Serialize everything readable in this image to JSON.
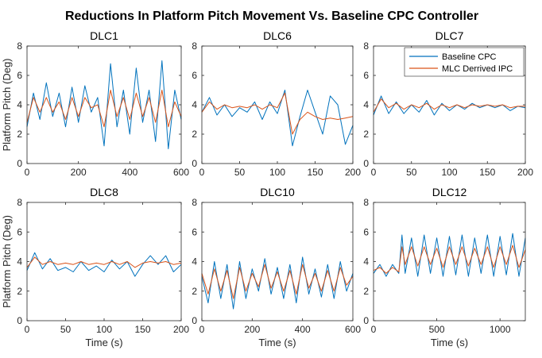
{
  "figure_title": "Reductions In Platform Pitch Movement Vs. Baseline CPC Controller",
  "legend": [
    "Baseline CPC",
    "MLC Derrived IPC"
  ],
  "colors": {
    "baseline": "#0072BD",
    "mlc": "#D95319"
  },
  "chart_data": [
    {
      "type": "line",
      "title": "DLC1",
      "xlabel": "",
      "ylabel": "Platform Pitch (Deg)",
      "xlim": [
        0,
        600
      ],
      "ylim": [
        0,
        8
      ],
      "xticks": [
        0,
        200,
        400,
        600
      ],
      "yticks": [
        0,
        2,
        4,
        6,
        8
      ],
      "legend": false,
      "series": [
        {
          "name": "Baseline CPC",
          "x": [
            0,
            25,
            50,
            75,
            100,
            125,
            150,
            175,
            200,
            225,
            250,
            275,
            300,
            325,
            350,
            375,
            400,
            425,
            450,
            475,
            500,
            525,
            550,
            575,
            600
          ],
          "y": [
            2.5,
            4.8,
            3.0,
            5.5,
            3.2,
            4.8,
            2.5,
            5.2,
            2.8,
            5.3,
            3.5,
            4.5,
            1.2,
            6.8,
            2.5,
            5.0,
            2.0,
            6.5,
            2.8,
            5.0,
            1.5,
            7.0,
            1.0,
            5.0,
            3.0
          ]
        },
        {
          "name": "MLC Derrived IPC",
          "x": [
            0,
            25,
            50,
            75,
            100,
            125,
            150,
            175,
            200,
            225,
            250,
            275,
            300,
            325,
            350,
            375,
            400,
            425,
            450,
            475,
            500,
            525,
            550,
            575,
            600
          ],
          "y": [
            2.8,
            4.5,
            3.5,
            4.5,
            3.5,
            4.2,
            3.0,
            4.5,
            3.2,
            4.5,
            3.8,
            4.0,
            2.5,
            5.0,
            3.2,
            4.5,
            3.0,
            4.8,
            3.2,
            4.5,
            2.8,
            5.0,
            2.5,
            4.2,
            3.2
          ]
        }
      ]
    },
    {
      "type": "line",
      "title": "DLC6",
      "xlabel": "",
      "ylabel": "",
      "xlim": [
        0,
        200
      ],
      "ylim": [
        0,
        8
      ],
      "xticks": [
        0,
        50,
        100,
        150,
        200
      ],
      "yticks": [
        0,
        2,
        4,
        6,
        8
      ],
      "legend": false,
      "series": [
        {
          "name": "Baseline CPC",
          "x": [
            0,
            10,
            20,
            30,
            40,
            50,
            60,
            70,
            80,
            90,
            100,
            110,
            120,
            130,
            140,
            150,
            160,
            170,
            180,
            190,
            200
          ],
          "y": [
            3.5,
            4.5,
            3.3,
            4.0,
            3.2,
            3.8,
            3.5,
            4.2,
            3.0,
            4.2,
            3.4,
            5.0,
            1.2,
            3.2,
            5.0,
            3.5,
            2.0,
            4.6,
            4.0,
            1.3,
            2.6
          ]
        },
        {
          "name": "MLC Derrived IPC",
          "x": [
            0,
            10,
            20,
            30,
            40,
            50,
            60,
            70,
            80,
            90,
            100,
            110,
            120,
            130,
            140,
            150,
            160,
            170,
            180,
            190,
            200
          ],
          "y": [
            3.5,
            4.2,
            3.7,
            4.0,
            3.8,
            3.9,
            3.8,
            4.0,
            3.7,
            4.0,
            3.8,
            4.8,
            2.0,
            3.0,
            3.5,
            3.2,
            3.0,
            3.1,
            3.0,
            3.1,
            3.2
          ]
        }
      ]
    },
    {
      "type": "line",
      "title": "DLC7",
      "xlabel": "",
      "ylabel": "",
      "xlim": [
        0,
        200
      ],
      "ylim": [
        0,
        8
      ],
      "xticks": [
        0,
        50,
        100,
        150,
        200
      ],
      "yticks": [
        0,
        2,
        4,
        6,
        8
      ],
      "legend": true,
      "series": [
        {
          "name": "Baseline CPC",
          "x": [
            0,
            10,
            20,
            30,
            40,
            50,
            60,
            70,
            80,
            90,
            100,
            110,
            120,
            130,
            140,
            150,
            160,
            170,
            180,
            190,
            200
          ],
          "y": [
            3.3,
            4.6,
            3.4,
            4.2,
            3.4,
            4.0,
            3.5,
            4.3,
            3.3,
            4.1,
            3.6,
            4.0,
            3.7,
            4.1,
            3.8,
            4.0,
            3.8,
            4.0,
            3.6,
            3.9,
            3.8
          ]
        },
        {
          "name": "MLC Derrived IPC",
          "x": [
            0,
            10,
            20,
            30,
            40,
            50,
            60,
            70,
            80,
            90,
            100,
            110,
            120,
            130,
            140,
            150,
            160,
            170,
            180,
            190,
            200
          ],
          "y": [
            3.5,
            4.4,
            3.8,
            4.1,
            3.7,
            4.0,
            3.8,
            4.1,
            3.7,
            4.0,
            3.8,
            4.0,
            3.8,
            4.0,
            3.9,
            4.0,
            3.9,
            4.0,
            3.8,
            3.9,
            3.9
          ]
        }
      ]
    },
    {
      "type": "line",
      "title": "DLC8",
      "xlabel": "Time (s)",
      "ylabel": "Platform Pitch (Deg)",
      "xlim": [
        0,
        200
      ],
      "ylim": [
        0,
        8
      ],
      "xticks": [
        0,
        50,
        100,
        150,
        200
      ],
      "yticks": [
        0,
        2,
        4,
        6,
        8
      ],
      "legend": false,
      "series": [
        {
          "name": "Baseline CPC",
          "x": [
            0,
            10,
            20,
            30,
            40,
            50,
            60,
            70,
            80,
            90,
            100,
            110,
            120,
            130,
            140,
            150,
            160,
            170,
            180,
            190,
            200
          ],
          "y": [
            3.4,
            4.6,
            3.5,
            4.2,
            3.4,
            3.6,
            3.3,
            4.0,
            3.4,
            3.7,
            3.3,
            4.1,
            3.5,
            4.0,
            3.0,
            3.8,
            4.4,
            3.8,
            4.4,
            3.3,
            3.8
          ]
        },
        {
          "name": "MLC Derrived IPC",
          "x": [
            0,
            10,
            20,
            30,
            40,
            50,
            60,
            70,
            80,
            90,
            100,
            110,
            120,
            130,
            140,
            150,
            160,
            170,
            180,
            190,
            200
          ],
          "y": [
            3.6,
            4.3,
            3.8,
            4.0,
            3.8,
            3.9,
            3.8,
            4.0,
            3.8,
            3.9,
            3.8,
            4.0,
            3.8,
            4.0,
            3.6,
            3.9,
            4.0,
            3.9,
            4.0,
            3.8,
            3.9
          ]
        }
      ]
    },
    {
      "type": "line",
      "title": "DLC10",
      "xlabel": "Time (s)",
      "ylabel": "",
      "xlim": [
        0,
        600
      ],
      "ylim": [
        0,
        8
      ],
      "xticks": [
        0,
        200,
        400,
        600
      ],
      "yticks": [
        0,
        2,
        4,
        6,
        8
      ],
      "legend": false,
      "series": [
        {
          "name": "Baseline CPC",
          "x": [
            0,
            25,
            50,
            75,
            100,
            125,
            150,
            175,
            200,
            225,
            250,
            275,
            300,
            325,
            350,
            375,
            400,
            425,
            450,
            475,
            500,
            525,
            550,
            575,
            600
          ],
          "y": [
            3.0,
            1.2,
            4.0,
            1.5,
            3.8,
            0.8,
            4.0,
            1.5,
            3.5,
            2.0,
            4.2,
            1.8,
            3.6,
            1.5,
            3.8,
            1.2,
            4.3,
            1.8,
            3.5,
            1.6,
            3.8,
            1.5,
            4.0,
            2.0,
            3.2
          ]
        },
        {
          "name": "MLC Derrived IPC",
          "x": [
            0,
            25,
            50,
            75,
            100,
            125,
            150,
            175,
            200,
            225,
            250,
            275,
            300,
            325,
            350,
            375,
            400,
            425,
            450,
            475,
            500,
            525,
            550,
            575,
            600
          ],
          "y": [
            3.2,
            1.8,
            3.5,
            2.0,
            3.4,
            1.5,
            3.6,
            2.0,
            3.2,
            2.3,
            3.8,
            2.2,
            3.3,
            2.0,
            3.4,
            1.8,
            3.8,
            2.2,
            3.2,
            2.0,
            3.4,
            2.0,
            3.6,
            2.4,
            3.0
          ]
        }
      ]
    },
    {
      "type": "line",
      "title": "DLC12",
      "xlabel": "Time (s)",
      "ylabel": "",
      "xlim": [
        0,
        1200
      ],
      "ylim": [
        0,
        8
      ],
      "xticks": [
        0,
        500,
        1000
      ],
      "yticks": [
        0,
        2,
        4,
        6,
        8
      ],
      "legend": false,
      "series": [
        {
          "name": "Baseline CPC",
          "x": [
            0,
            50,
            100,
            150,
            200,
            225,
            250,
            300,
            350,
            400,
            450,
            500,
            550,
            600,
            650,
            700,
            750,
            800,
            850,
            900,
            950,
            1000,
            1050,
            1100,
            1150,
            1200
          ],
          "y": [
            3.2,
            3.8,
            3.0,
            3.8,
            3.2,
            5.8,
            3.2,
            5.6,
            3.0,
            5.8,
            3.2,
            5.6,
            3.0,
            5.7,
            3.1,
            5.8,
            3.0,
            5.6,
            3.2,
            5.8,
            3.0,
            5.7,
            3.1,
            5.9,
            3.0,
            5.6
          ]
        },
        {
          "name": "MLC Derrived IPC",
          "x": [
            0,
            50,
            100,
            150,
            200,
            225,
            250,
            300,
            350,
            400,
            450,
            500,
            550,
            600,
            650,
            700,
            750,
            800,
            850,
            900,
            950,
            1000,
            1050,
            1100,
            1150,
            1200
          ],
          "y": [
            3.4,
            3.6,
            3.2,
            3.6,
            3.3,
            5.0,
            3.8,
            5.0,
            3.7,
            5.0,
            3.8,
            4.9,
            3.6,
            5.0,
            3.8,
            5.0,
            3.7,
            4.9,
            3.8,
            5.0,
            3.6,
            5.0,
            3.8,
            5.1,
            3.6,
            4.8
          ]
        }
      ]
    }
  ]
}
